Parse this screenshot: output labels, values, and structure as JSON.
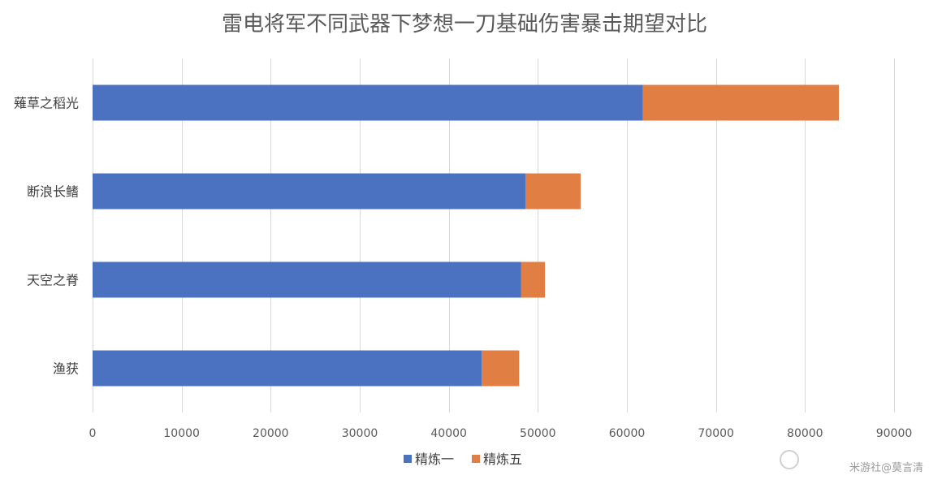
{
  "chart_data": {
    "type": "bar",
    "orientation": "horizontal",
    "stacked": true,
    "title": "雷电将军不同武器下梦想一刀基础伤害暴击期望对比",
    "categories": [
      "薙草之稻光",
      "断浪长鳍",
      "天空之脊",
      "渔获"
    ],
    "series": [
      {
        "name": "精炼一",
        "color": "#4a72c1",
        "values": [
          61800,
          48600,
          48100,
          43700
        ]
      },
      {
        "name": "精炼五",
        "color": "#e07e43",
        "values": [
          22000,
          6200,
          2700,
          4200
        ]
      }
    ],
    "xlim": [
      0,
      90000
    ],
    "xticks": [
      0,
      10000,
      20000,
      30000,
      40000,
      50000,
      60000,
      70000,
      80000,
      90000
    ],
    "grid": "vertical",
    "legend_position": "bottom"
  },
  "watermark": "米游社@莫言清"
}
